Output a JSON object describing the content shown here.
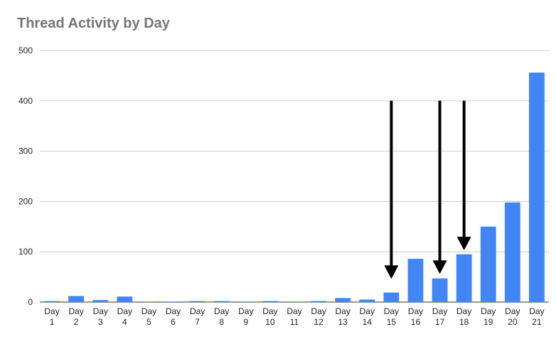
{
  "chart_data": {
    "type": "bar",
    "title": "Thread Activity by Day",
    "xlabel": "",
    "ylabel": "",
    "ylim": [
      0,
      500
    ],
    "yticks": [
      0,
      100,
      200,
      300,
      400,
      500
    ],
    "grid": true,
    "legend": "none",
    "categories": [
      "Day 1",
      "Day 2",
      "Day 3",
      "Day 4",
      "Day 5",
      "Day 6",
      "Day 7",
      "Day 8",
      "Day 9",
      "Day 10",
      "Day 11",
      "Day 12",
      "Day 13",
      "Day 14",
      "Day 15",
      "Day 16",
      "Day 17",
      "Day 18",
      "Day 19",
      "Day 20",
      "Day 21"
    ],
    "values": [
      2,
      12,
      4,
      11,
      1,
      1,
      2,
      2,
      1,
      2,
      1,
      2,
      8,
      5,
      19,
      86,
      47,
      95,
      150,
      198,
      456
    ],
    "bar_color": "#4285f4",
    "arrow_color": "#000000",
    "annotations": [
      {
        "type": "arrow",
        "category": "Day 15",
        "from_y": 400,
        "to_y": 46
      },
      {
        "type": "arrow",
        "category": "Day 17",
        "from_y": 400,
        "to_y": 56
      },
      {
        "type": "arrow",
        "category": "Day 18",
        "from_y": 400,
        "to_y": 103
      }
    ]
  }
}
